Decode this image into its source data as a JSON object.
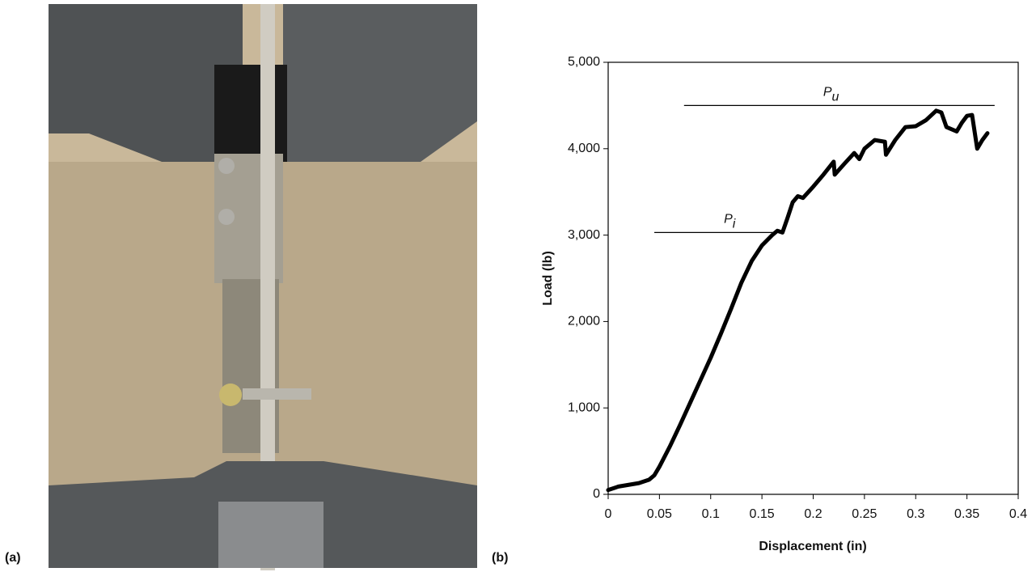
{
  "panel_labels": [
    "(a)",
    "(b)"
  ],
  "chart_data": {
    "type": "line",
    "x_label": "Displacement (in)",
    "y_label": "Load (lb)",
    "color": "#000000",
    "x": [
      0,
      0.01,
      0.02,
      0.03,
      0.04,
      0.045,
      0.05,
      0.06,
      0.07,
      0.08,
      0.09,
      0.1,
      0.11,
      0.12,
      0.13,
      0.14,
      0.15,
      0.16,
      0.165,
      0.17,
      0.175,
      0.18,
      0.185,
      0.19,
      0.2,
      0.21,
      0.22,
      0.221,
      0.23,
      0.24,
      0.245,
      0.25,
      0.26,
      0.27,
      0.271,
      0.28,
      0.29,
      0.3,
      0.31,
      0.32,
      0.325,
      0.33,
      0.34,
      0.345,
      0.35,
      0.355,
      0.36,
      0.365,
      0.37
    ],
    "values": [
      50,
      90,
      110,
      130,
      170,
      220,
      320,
      550,
      800,
      1060,
      1320,
      1580,
      1860,
      2150,
      2450,
      2700,
      2880,
      3000,
      3050,
      3030,
      3200,
      3380,
      3450,
      3430,
      3560,
      3700,
      3850,
      3700,
      3820,
      3950,
      3880,
      4000,
      4100,
      4080,
      3930,
      4100,
      4250,
      4260,
      4330,
      4440,
      4420,
      4250,
      4200,
      4300,
      4380,
      4390,
      4000,
      4100,
      4180
    ],
    "xlim": [
      0,
      0.4
    ],
    "xticks": [
      0,
      0.05,
      0.1,
      0.15,
      0.2,
      0.25,
      0.3,
      0.35,
      0.4
    ],
    "ylim": [
      0,
      5000
    ],
    "yticks": [
      0,
      {
        "value": 1000,
        "label": "1,000"
      },
      {
        "value": 2000,
        "label": "2,000"
      },
      {
        "value": 3000,
        "label": "3,000"
      },
      {
        "value": 4000,
        "label": "4,000"
      },
      {
        "value": 5000,
        "label": "5,000"
      }
    ],
    "annotations": [
      {
        "text": "P",
        "subscript": "u",
        "y": 4500,
        "x": [
          0.074,
          0.377
        ]
      },
      {
        "text": "P",
        "subscript": "i",
        "y": 3030,
        "x": [
          0.045,
          0.165
        ]
      }
    ]
  }
}
